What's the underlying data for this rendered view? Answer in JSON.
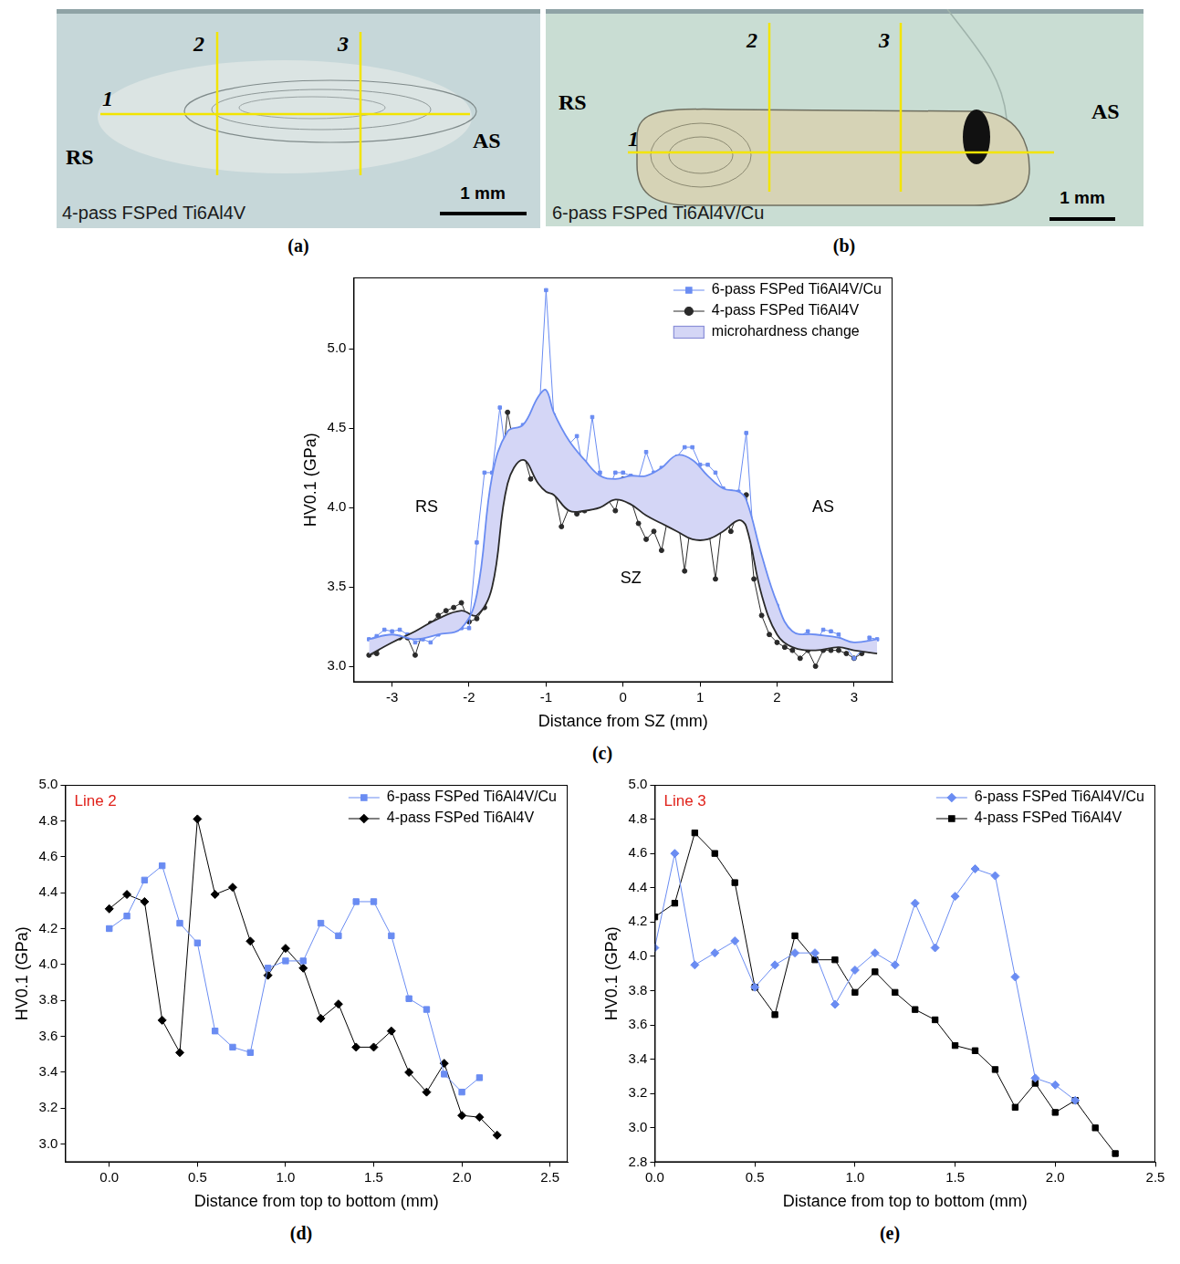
{
  "images": [
    {
      "panel": "(a)",
      "caption": "4-pass FSPed Ti6Al4V",
      "left_label": "RS",
      "right_label": "AS",
      "line_labels": [
        "1",
        "2",
        "3"
      ],
      "scale_bar": "1 mm"
    },
    {
      "panel": "(b)",
      "caption": "6-pass FSPed Ti6Al4V/Cu",
      "left_label": "RS",
      "right_label": "AS",
      "line_labels": [
        "1",
        "2",
        "3"
      ],
      "scale_bar": "1 mm"
    }
  ],
  "chart_data": [
    {
      "panel": "(c)",
      "type": "line",
      "x_label": "Distance from SZ (mm)",
      "y_label": "HV0.1 (GPa)",
      "xlim": [
        -3.5,
        3.5
      ],
      "xticks": [
        -3,
        -2,
        -1,
        0,
        1,
        2,
        3
      ],
      "ylim": [
        2.9,
        5.45
      ],
      "yticks": [
        {
          "value": 3,
          "label": "3.0"
        },
        3.5,
        {
          "value": 4,
          "label": "4.0"
        },
        4.5,
        {
          "value": 5,
          "label": "5.0"
        }
      ],
      "grid": false,
      "legend": "top-right",
      "series": [
        {
          "name": "6-pass FSPed Ti6Al4V/Cu",
          "color": "#6a8cf2",
          "marker": "square",
          "x": [
            -3.3,
            -3.2,
            -3.1,
            -3.0,
            -2.9,
            -2.8,
            -2.7,
            -2.6,
            -2.5,
            -2.4,
            -2.3,
            -2.2,
            -2.1,
            -2.0,
            -1.9,
            -1.8,
            -1.7,
            -1.6,
            -1.5,
            -1.4,
            -1.3,
            -1.2,
            -1.1,
            -1.0,
            -0.9,
            -0.8,
            -0.7,
            -0.6,
            -0.5,
            -0.4,
            -0.3,
            -0.2,
            -0.1,
            0.0,
            0.1,
            0.2,
            0.3,
            0.4,
            0.5,
            0.6,
            0.7,
            0.8,
            0.9,
            1.0,
            1.1,
            1.2,
            1.3,
            1.4,
            1.5,
            1.6,
            1.7,
            1.8,
            1.9,
            2.0,
            2.1,
            2.2,
            2.3,
            2.4,
            2.5,
            2.6,
            2.7,
            2.8,
            2.9,
            3.0,
            3.1,
            3.2,
            3.3
          ],
          "values": [
            3.17,
            3.19,
            3.23,
            3.22,
            3.23,
            3.2,
            3.15,
            3.17,
            3.15,
            3.2,
            3.22,
            3.24,
            3.24,
            3.24,
            3.78,
            4.22,
            4.22,
            4.63,
            4.25,
            4.45,
            4.52,
            4.5,
            4.5,
            5.37,
            4.58,
            4.4,
            4.4,
            4.45,
            4.2,
            4.57,
            4.22,
            4.1,
            4.22,
            4.22,
            4.2,
            4.18,
            4.35,
            4.22,
            4.25,
            4.2,
            4.32,
            4.38,
            4.38,
            4.27,
            4.27,
            4.22,
            4.12,
            4.1,
            4.1,
            4.47,
            3.75,
            3.63,
            3.45,
            3.38,
            3.25,
            3.2,
            3.19,
            3.22,
            3.15,
            3.23,
            3.22,
            3.2,
            3.12,
            3.05,
            3.1,
            3.18,
            3.17
          ],
          "smooth_x": [
            -3.3,
            -3.0,
            -2.7,
            -2.4,
            -2.1,
            -1.9,
            -1.7,
            -1.5,
            -1.3,
            -1.1,
            -1.0,
            -0.9,
            -0.7,
            -0.5,
            -0.3,
            -0.1,
            0.1,
            0.3,
            0.5,
            0.7,
            0.9,
            1.1,
            1.3,
            1.5,
            1.6,
            1.8,
            2.0,
            2.2,
            2.5,
            2.8,
            3.0,
            3.3
          ],
          "smooth_values": [
            3.17,
            3.2,
            3.17,
            3.2,
            3.24,
            3.45,
            4.2,
            4.48,
            4.52,
            4.7,
            4.74,
            4.6,
            4.42,
            4.3,
            4.2,
            4.18,
            4.2,
            4.2,
            4.25,
            4.33,
            4.3,
            4.2,
            4.12,
            4.1,
            4.05,
            3.7,
            3.4,
            3.22,
            3.2,
            3.18,
            3.15,
            3.17
          ]
        },
        {
          "name": "4-pass FSPed Ti6Al4V",
          "color": "#2a2a2a",
          "marker": "circle",
          "x": [
            -3.3,
            -3.2,
            -3.1,
            -3.0,
            -2.9,
            -2.8,
            -2.7,
            -2.6,
            -2.5,
            -2.4,
            -2.3,
            -2.2,
            -2.1,
            -2.0,
            -1.9,
            -1.8,
            -1.7,
            -1.6,
            -1.5,
            -1.4,
            -1.3,
            -1.2,
            -1.1,
            -1.0,
            -0.9,
            -0.8,
            -0.7,
            -0.6,
            -0.5,
            -0.4,
            -0.3,
            -0.2,
            -0.1,
            0.0,
            0.1,
            0.2,
            0.3,
            0.4,
            0.5,
            0.6,
            0.7,
            0.8,
            0.9,
            1.0,
            1.1,
            1.2,
            1.3,
            1.4,
            1.5,
            1.6,
            1.7,
            1.8,
            1.9,
            2.0,
            2.1,
            2.2,
            2.3,
            2.4,
            2.5,
            2.6,
            2.7,
            2.8,
            2.9,
            3.0,
            3.1,
            3.2
          ],
          "values": [
            3.07,
            3.08,
            3.15,
            3.17,
            3.18,
            3.18,
            3.07,
            3.22,
            3.27,
            3.32,
            3.35,
            3.37,
            3.4,
            3.28,
            3.3,
            3.37,
            3.78,
            4.15,
            4.6,
            4.35,
            4.35,
            4.18,
            4.23,
            4.13,
            4.12,
            3.88,
            4.0,
            3.96,
            3.98,
            4.0,
            4.05,
            4.05,
            3.98,
            4.18,
            4.05,
            3.9,
            3.8,
            3.85,
            3.73,
            3.98,
            3.98,
            3.6,
            3.98,
            3.98,
            3.9,
            3.55,
            3.98,
            3.85,
            3.98,
            4.08,
            3.55,
            3.32,
            3.2,
            3.15,
            3.12,
            3.1,
            3.05,
            3.1,
            3.0,
            3.1,
            3.1,
            3.1,
            3.08,
            3.05,
            3.08,
            3.1
          ],
          "smooth_x": [
            -3.3,
            -3.0,
            -2.7,
            -2.4,
            -2.1,
            -1.9,
            -1.7,
            -1.5,
            -1.3,
            -1.1,
            -1.0,
            -0.9,
            -0.7,
            -0.5,
            -0.3,
            -0.1,
            0.1,
            0.3,
            0.5,
            0.7,
            0.9,
            1.1,
            1.3,
            1.5,
            1.6,
            1.8,
            2.0,
            2.2,
            2.5,
            2.8,
            3.0,
            3.3
          ],
          "smooth_values": [
            3.07,
            3.15,
            3.22,
            3.3,
            3.35,
            3.32,
            3.5,
            4.15,
            4.3,
            4.15,
            4.1,
            4.08,
            3.98,
            3.98,
            4.0,
            4.05,
            4.02,
            3.95,
            3.9,
            3.85,
            3.8,
            3.8,
            3.85,
            3.92,
            3.88,
            3.45,
            3.2,
            3.12,
            3.1,
            3.12,
            3.1,
            3.08
          ]
        }
      ],
      "band": {
        "name": "microhardness change",
        "color": "#d4d6f6"
      },
      "annotations": [
        {
          "text": "RS",
          "x": -2.55,
          "y": 4.0
        },
        {
          "text": "SZ",
          "x": 0.1,
          "y": 3.55
        },
        {
          "text": "AS",
          "x": 2.6,
          "y": 4.0
        }
      ]
    },
    {
      "panel": "(d)",
      "type": "line",
      "annotation": "Line 2",
      "x_label": "Distance from top to bottom (mm)",
      "y_label": "HV0.1 (GPa)",
      "xlim": [
        -0.25,
        2.6
      ],
      "xticks": [
        {
          "value": 0,
          "label": "0.0"
        },
        0.5,
        {
          "value": 1,
          "label": "1.0"
        },
        1.5,
        {
          "value": 2,
          "label": "2.0"
        },
        2.5
      ],
      "ylim": [
        2.9,
        5.0
      ],
      "yticks": [
        {
          "value": 3,
          "label": "3.0"
        },
        3.2,
        3.4,
        3.6,
        3.8,
        {
          "value": 4,
          "label": "4.0"
        },
        4.2,
        4.4,
        4.6,
        4.8,
        {
          "value": 5,
          "label": "5.0"
        }
      ],
      "grid": false,
      "legend": "top-right",
      "series": [
        {
          "name": "6-pass FSPed Ti6Al4V/Cu",
          "color": "#6a8cf2",
          "marker": "square",
          "x": [
            0.0,
            0.1,
            0.2,
            0.3,
            0.4,
            0.5,
            0.6,
            0.7,
            0.8,
            0.9,
            1.0,
            1.1,
            1.2,
            1.3,
            1.4,
            1.5,
            1.6,
            1.7,
            1.8,
            1.9,
            2.0,
            2.1
          ],
          "values": [
            4.2,
            4.27,
            4.47,
            4.55,
            4.23,
            4.12,
            3.63,
            3.54,
            3.51,
            3.98,
            4.02,
            4.02,
            4.23,
            4.16,
            4.35,
            4.35,
            4.16,
            3.81,
            3.75,
            3.39,
            3.29,
            3.37
          ]
        },
        {
          "name": "4-pass FSPed Ti6Al4V",
          "color": "#000000",
          "marker": "diamond",
          "x": [
            0.0,
            0.1,
            0.2,
            0.3,
            0.4,
            0.5,
            0.6,
            0.7,
            0.8,
            0.9,
            1.0,
            1.1,
            1.2,
            1.3,
            1.4,
            1.5,
            1.6,
            1.7,
            1.8,
            1.9,
            2.0,
            2.1,
            2.2
          ],
          "values": [
            4.31,
            4.39,
            4.35,
            3.69,
            3.51,
            4.81,
            4.39,
            4.43,
            4.13,
            3.94,
            4.09,
            3.98,
            3.7,
            3.78,
            3.54,
            3.54,
            3.63,
            3.4,
            3.29,
            3.45,
            3.16,
            3.15,
            3.05
          ]
        }
      ]
    },
    {
      "panel": "(e)",
      "type": "line",
      "annotation": "Line 3",
      "x_label": "Distance from top to bottom (mm)",
      "y_label": "HV0.1 (GPa)",
      "xlim": [
        0,
        2.5
      ],
      "xticks": [
        {
          "value": 0,
          "label": "0.0"
        },
        0.5,
        {
          "value": 1,
          "label": "1.0"
        },
        1.5,
        {
          "value": 2,
          "label": "2.0"
        },
        2.5
      ],
      "ylim": [
        2.8,
        5.0
      ],
      "yticks": [
        2.8,
        {
          "value": 3,
          "label": "3.0"
        },
        3.2,
        3.4,
        3.6,
        3.8,
        {
          "value": 4,
          "label": "4.0"
        },
        4.2,
        4.4,
        4.6,
        4.8,
        {
          "value": 5,
          "label": "5.0"
        }
      ],
      "grid": false,
      "legend": "top-right",
      "series": [
        {
          "name": "6-pass FSPed Ti6Al4V/Cu",
          "color": "#6a8cf2",
          "marker": "diamond",
          "x": [
            0.0,
            0.1,
            0.2,
            0.3,
            0.4,
            0.5,
            0.6,
            0.7,
            0.8,
            0.9,
            1.0,
            1.1,
            1.2,
            1.3,
            1.4,
            1.5,
            1.6,
            1.7,
            1.8,
            1.9,
            2.0,
            2.1
          ],
          "values": [
            4.05,
            4.6,
            3.95,
            4.02,
            4.09,
            3.82,
            3.95,
            4.02,
            4.02,
            3.72,
            3.92,
            4.02,
            3.95,
            4.31,
            4.05,
            4.35,
            4.51,
            4.47,
            3.88,
            3.29,
            3.25,
            3.16
          ]
        },
        {
          "name": "4-pass FSPed Ti6Al4V",
          "color": "#000000",
          "marker": "square",
          "x": [
            0.0,
            0.1,
            0.2,
            0.3,
            0.4,
            0.5,
            0.6,
            0.7,
            0.8,
            0.9,
            1.0,
            1.1,
            1.2,
            1.3,
            1.4,
            1.5,
            1.6,
            1.7,
            1.8,
            1.9,
            2.0,
            2.1,
            2.2,
            2.3
          ],
          "values": [
            4.23,
            4.31,
            4.72,
            4.6,
            4.43,
            3.82,
            3.66,
            4.12,
            3.98,
            3.98,
            3.79,
            3.91,
            3.79,
            3.69,
            3.63,
            3.48,
            3.45,
            3.34,
            3.12,
            3.26,
            3.09,
            3.16,
            3.0,
            2.85
          ]
        }
      ]
    }
  ]
}
